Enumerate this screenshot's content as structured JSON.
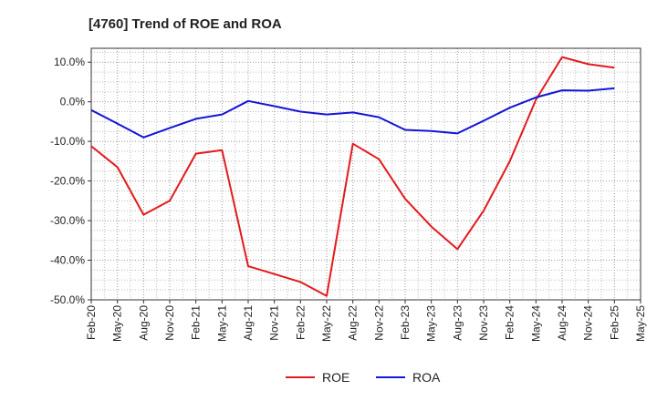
{
  "chart_data": {
    "type": "line",
    "title": "[4760]  Trend of ROE and ROA",
    "x": [
      "Feb-20",
      "May-20",
      "Aug-20",
      "Nov-20",
      "Feb-21",
      "May-21",
      "Aug-21",
      "Nov-21",
      "Feb-22",
      "May-22",
      "Aug-22",
      "Nov-22",
      "Feb-23",
      "May-23",
      "Aug-23",
      "Nov-23",
      "Feb-24",
      "May-24",
      "Aug-24",
      "Nov-24",
      "Feb-25",
      "May-25"
    ],
    "y_ticks": [
      "10.0%",
      "0.0%",
      "-10.0%",
      "-20.0%",
      "-30.0%",
      "-40.0%",
      "-50.0%"
    ],
    "y_tick_values": [
      10,
      0,
      -10,
      -20,
      -30,
      -40,
      -50
    ],
    "ylim": [
      -50,
      13.5
    ],
    "grid": true,
    "legend_position": "bottom-center",
    "series": [
      {
        "name": "ROE",
        "color": "#e31a1c",
        "values": [
          -11.2,
          -16.5,
          -28.5,
          -25.0,
          -13.1,
          -12.2,
          -41.5,
          -43.5,
          -45.5,
          -49.0,
          -10.6,
          -14.5,
          -24.5,
          -31.5,
          -37.2,
          -27.5,
          -15.0,
          0.5,
          11.3,
          9.5,
          8.6,
          null
        ]
      },
      {
        "name": "ROA",
        "color": "#1515d6",
        "values": [
          -2.1,
          -5.5,
          -9.0,
          -6.6,
          -4.3,
          -3.2,
          0.2,
          -1.1,
          -2.5,
          -3.2,
          -2.7,
          -3.9,
          -7.1,
          -7.4,
          -8.0,
          -4.8,
          -1.5,
          1.1,
          2.9,
          2.8,
          3.4,
          null
        ]
      }
    ]
  }
}
